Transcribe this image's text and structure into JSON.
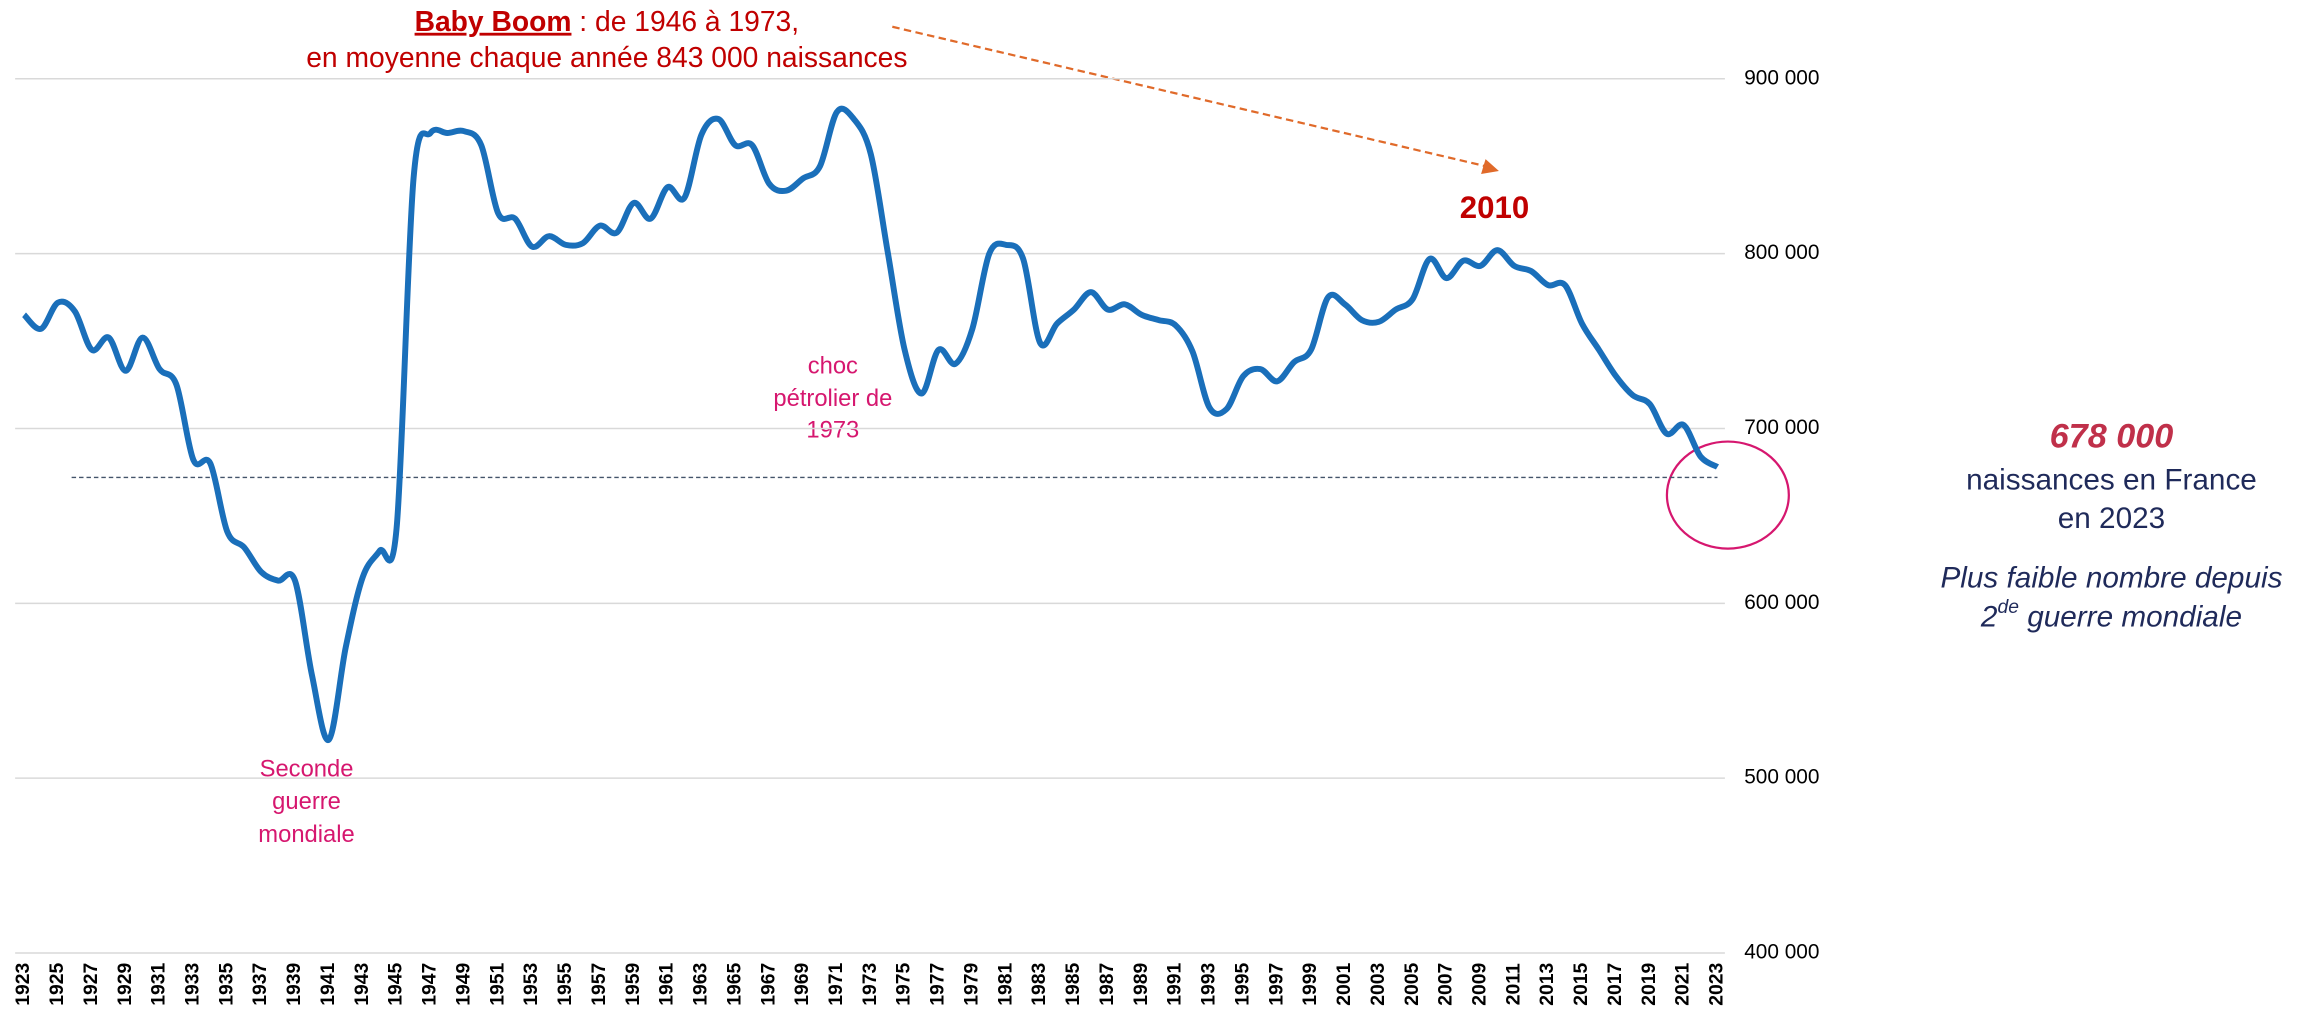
{
  "chart_data": {
    "type": "line",
    "title": {
      "bold": "Baby Boom",
      "rest": " : de 1946 à 1973,",
      "line2": "en moyenne chaque année 843 000 naissances"
    },
    "categories": [
      "1923",
      null,
      "1925",
      null,
      "1927",
      null,
      "1929",
      null,
      "1931",
      null,
      "1933",
      null,
      "1935",
      null,
      "1937",
      null,
      "1939",
      null,
      "1941",
      null,
      "1943",
      null,
      "1945",
      null,
      "1947",
      null,
      "1949",
      null,
      "1951",
      null,
      "1953",
      null,
      "1955",
      null,
      "1957",
      null,
      "1959",
      null,
      "1961",
      null,
      "1963",
      null,
      "1965",
      null,
      "1967",
      null,
      "1969",
      null,
      "1971",
      null,
      "1973",
      null,
      "1975",
      null,
      "1977",
      null,
      "1979",
      null,
      "1981",
      null,
      "1983",
      null,
      "1985",
      null,
      "1987",
      null,
      "1989",
      null,
      "1991",
      null,
      "1993",
      null,
      "1995",
      null,
      "1997",
      null,
      "1999",
      null,
      "2001",
      null,
      "2003",
      null,
      "2005",
      null,
      "2007",
      null,
      "2009",
      null,
      "2011",
      null,
      "2013",
      null,
      "2015",
      null,
      "2017",
      null,
      "2019",
      null,
      "2021",
      null,
      "2023"
    ],
    "values": [
      765000,
      757000,
      772000,
      767000,
      745000,
      752000,
      733000,
      752000,
      734000,
      725000,
      682000,
      680000,
      641000,
      632000,
      618000,
      613000,
      613000,
      559000,
      522000,
      575000,
      615000,
      630000,
      643000,
      843000,
      869000,
      869000,
      870000,
      862000,
      823000,
      820000,
      804000,
      810000,
      805000,
      806000,
      816000,
      812000,
      829000,
      820000,
      838000,
      832000,
      868000,
      877000,
      862000,
      862000,
      840000,
      836000,
      843000,
      850000,
      881000,
      877000,
      857000,
      801000,
      745000,
      720000,
      745000,
      737000,
      757000,
      800000,
      805000,
      797000,
      749000,
      760000,
      768000,
      778000,
      768000,
      771000,
      765000,
      762000,
      759000,
      744000,
      712000,
      711000,
      730000,
      734000,
      727000,
      738000,
      745000,
      775000,
      771000,
      762000,
      761000,
      768000,
      774000,
      797000,
      786000,
      796000,
      793000,
      802000,
      793000,
      790000,
      782000,
      782000,
      760000,
      745000,
      730000,
      719000,
      714000,
      697000,
      702000,
      684000,
      678000
    ],
    "color": "#1a6fba",
    "reference_line": 672000,
    "ylim": [
      400000,
      900000
    ],
    "yticks": [
      {
        "value": 400000,
        "label": "400 000"
      },
      {
        "value": 500000,
        "label": "500 000"
      },
      {
        "value": 600000,
        "label": "600 000"
      },
      {
        "value": 700000,
        "label": "700 000"
      },
      {
        "value": 800000,
        "label": "800 000"
      },
      {
        "value": 900000,
        "label": "900 000"
      }
    ],
    "grid": true,
    "annotations": {
      "peak": "2010",
      "oil": [
        "choc",
        "pétrolier de",
        "1973"
      ],
      "war": [
        "Seconde",
        "guerre",
        "mondiale"
      ]
    },
    "side": {
      "value": "678 000",
      "line1": "naissances en France",
      "line2": "en 2023",
      "note1": "Plus faible nombre depuis",
      "note2a": "2",
      "note2sup": "de",
      "note2b": " guerre mondiale"
    }
  }
}
